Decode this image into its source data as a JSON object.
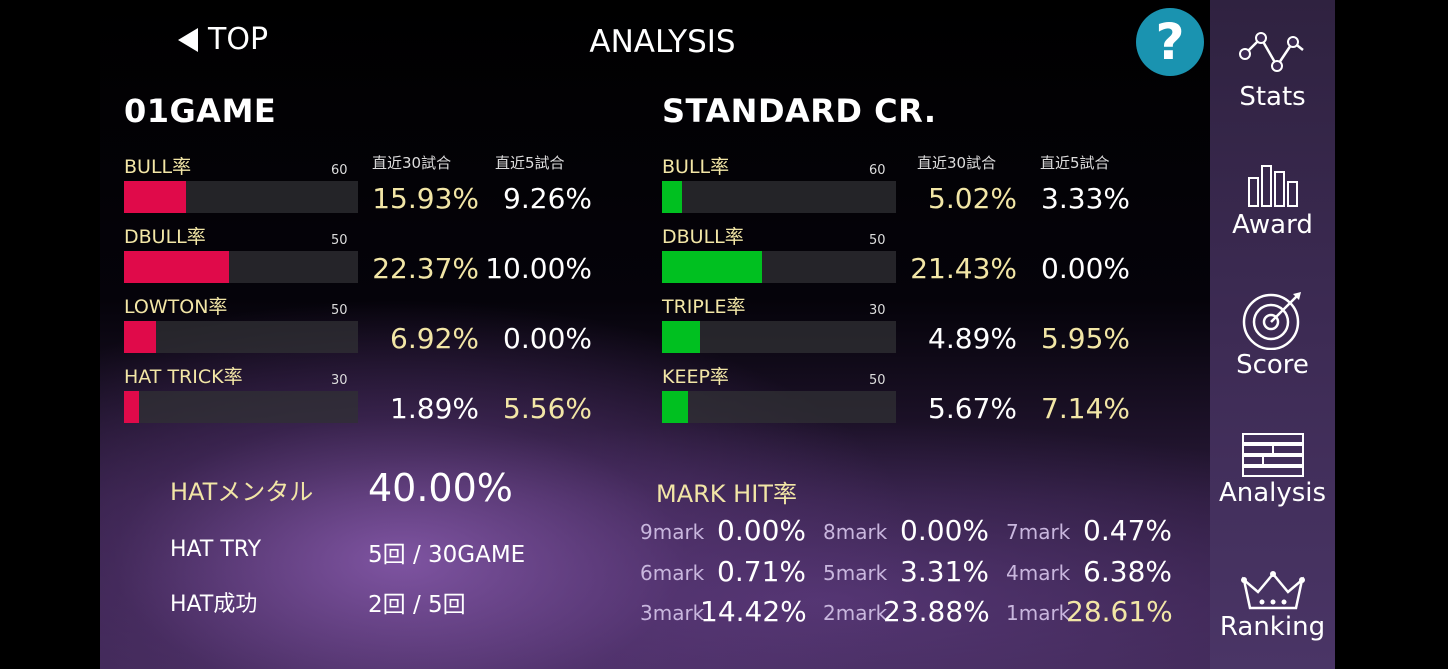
{
  "header": {
    "back_label": "TOP",
    "title": "ANALYSIS",
    "help_label": "?"
  },
  "game01": {
    "title": "01GAME",
    "col_recent30": "直近30試合",
    "col_recent5": "直近5試合",
    "rows": [
      {
        "label": "BULL率",
        "max": "60",
        "fill": 0.265,
        "recent30": "15.93%",
        "recent5": "9.26%",
        "color30": "#f2e6a6",
        "color5": "#ffffff"
      },
      {
        "label": "DBULL率",
        "max": "50",
        "fill": 0.447,
        "recent30": "22.37%",
        "recent5": "10.00%",
        "color30": "#f2e6a6",
        "color5": "#ffffff"
      },
      {
        "label": "LOWTON率",
        "max": "50",
        "fill": 0.138,
        "recent30": "6.92%",
        "recent5": "0.00%",
        "color30": "#f2e6a6",
        "color5": "#ffffff"
      },
      {
        "label": "HAT TRICK率",
        "max": "30",
        "fill": 0.063,
        "recent30": "1.89%",
        "recent5": "5.56%",
        "color30": "#ffffff",
        "color5": "#f2e6a6"
      }
    ],
    "bar_color": "#e00a4a"
  },
  "cricket": {
    "title": "STANDARD CR.",
    "col_recent30": "直近30試合",
    "col_recent5": "直近5試合",
    "rows": [
      {
        "label": "BULL率",
        "max": "60",
        "fill": 0.084,
        "recent30": "5.02%",
        "recent5": "3.33%",
        "color30": "#f2e6a6",
        "color5": "#ffffff"
      },
      {
        "label": "DBULL率",
        "max": "50",
        "fill": 0.429,
        "recent30": "21.43%",
        "recent5": "0.00%",
        "color30": "#f2e6a6",
        "color5": "#ffffff"
      },
      {
        "label": "TRIPLE率",
        "max": "30",
        "fill": 0.163,
        "recent30": "4.89%",
        "recent5": "5.95%",
        "color30": "#ffffff",
        "color5": "#f2e6a6"
      },
      {
        "label": "KEEP率",
        "max": "50",
        "fill": 0.113,
        "recent30": "5.67%",
        "recent5": "7.14%",
        "color30": "#ffffff",
        "color5": "#f2e6a6"
      }
    ],
    "bar_color": "#00c020"
  },
  "hat": {
    "mental_label": "HATメンタル",
    "mental_value": "40.00%",
    "try_label": "HAT TRY",
    "try_value": "5回 / 30GAME",
    "success_label": "HAT成功",
    "success_value": "2回 / 5回"
  },
  "mark_hit": {
    "title": "MARK HIT率",
    "items": [
      {
        "label": "9mark",
        "value": "0.00%",
        "color": "#ffffff"
      },
      {
        "label": "8mark",
        "value": "0.00%",
        "color": "#ffffff"
      },
      {
        "label": "7mark",
        "value": "0.47%",
        "color": "#ffffff"
      },
      {
        "label": "6mark",
        "value": "0.71%",
        "color": "#ffffff"
      },
      {
        "label": "5mark",
        "value": "3.31%",
        "color": "#ffffff"
      },
      {
        "label": "4mark",
        "value": "6.38%",
        "color": "#ffffff"
      },
      {
        "label": "3mark",
        "value": "14.42%",
        "color": "#ffffff"
      },
      {
        "label": "2mark",
        "value": "23.88%",
        "color": "#ffffff"
      },
      {
        "label": "1mark",
        "value": "28.61%",
        "color": "#f2e6a6"
      }
    ]
  },
  "sidebar": {
    "items": [
      {
        "label": "Stats",
        "icon": "stats-icon"
      },
      {
        "label": "Award",
        "icon": "award-icon"
      },
      {
        "label": "Score",
        "icon": "target-icon"
      },
      {
        "label": "Analysis",
        "icon": "analysis-icon"
      },
      {
        "label": "Ranking",
        "icon": "crown-icon"
      }
    ]
  }
}
